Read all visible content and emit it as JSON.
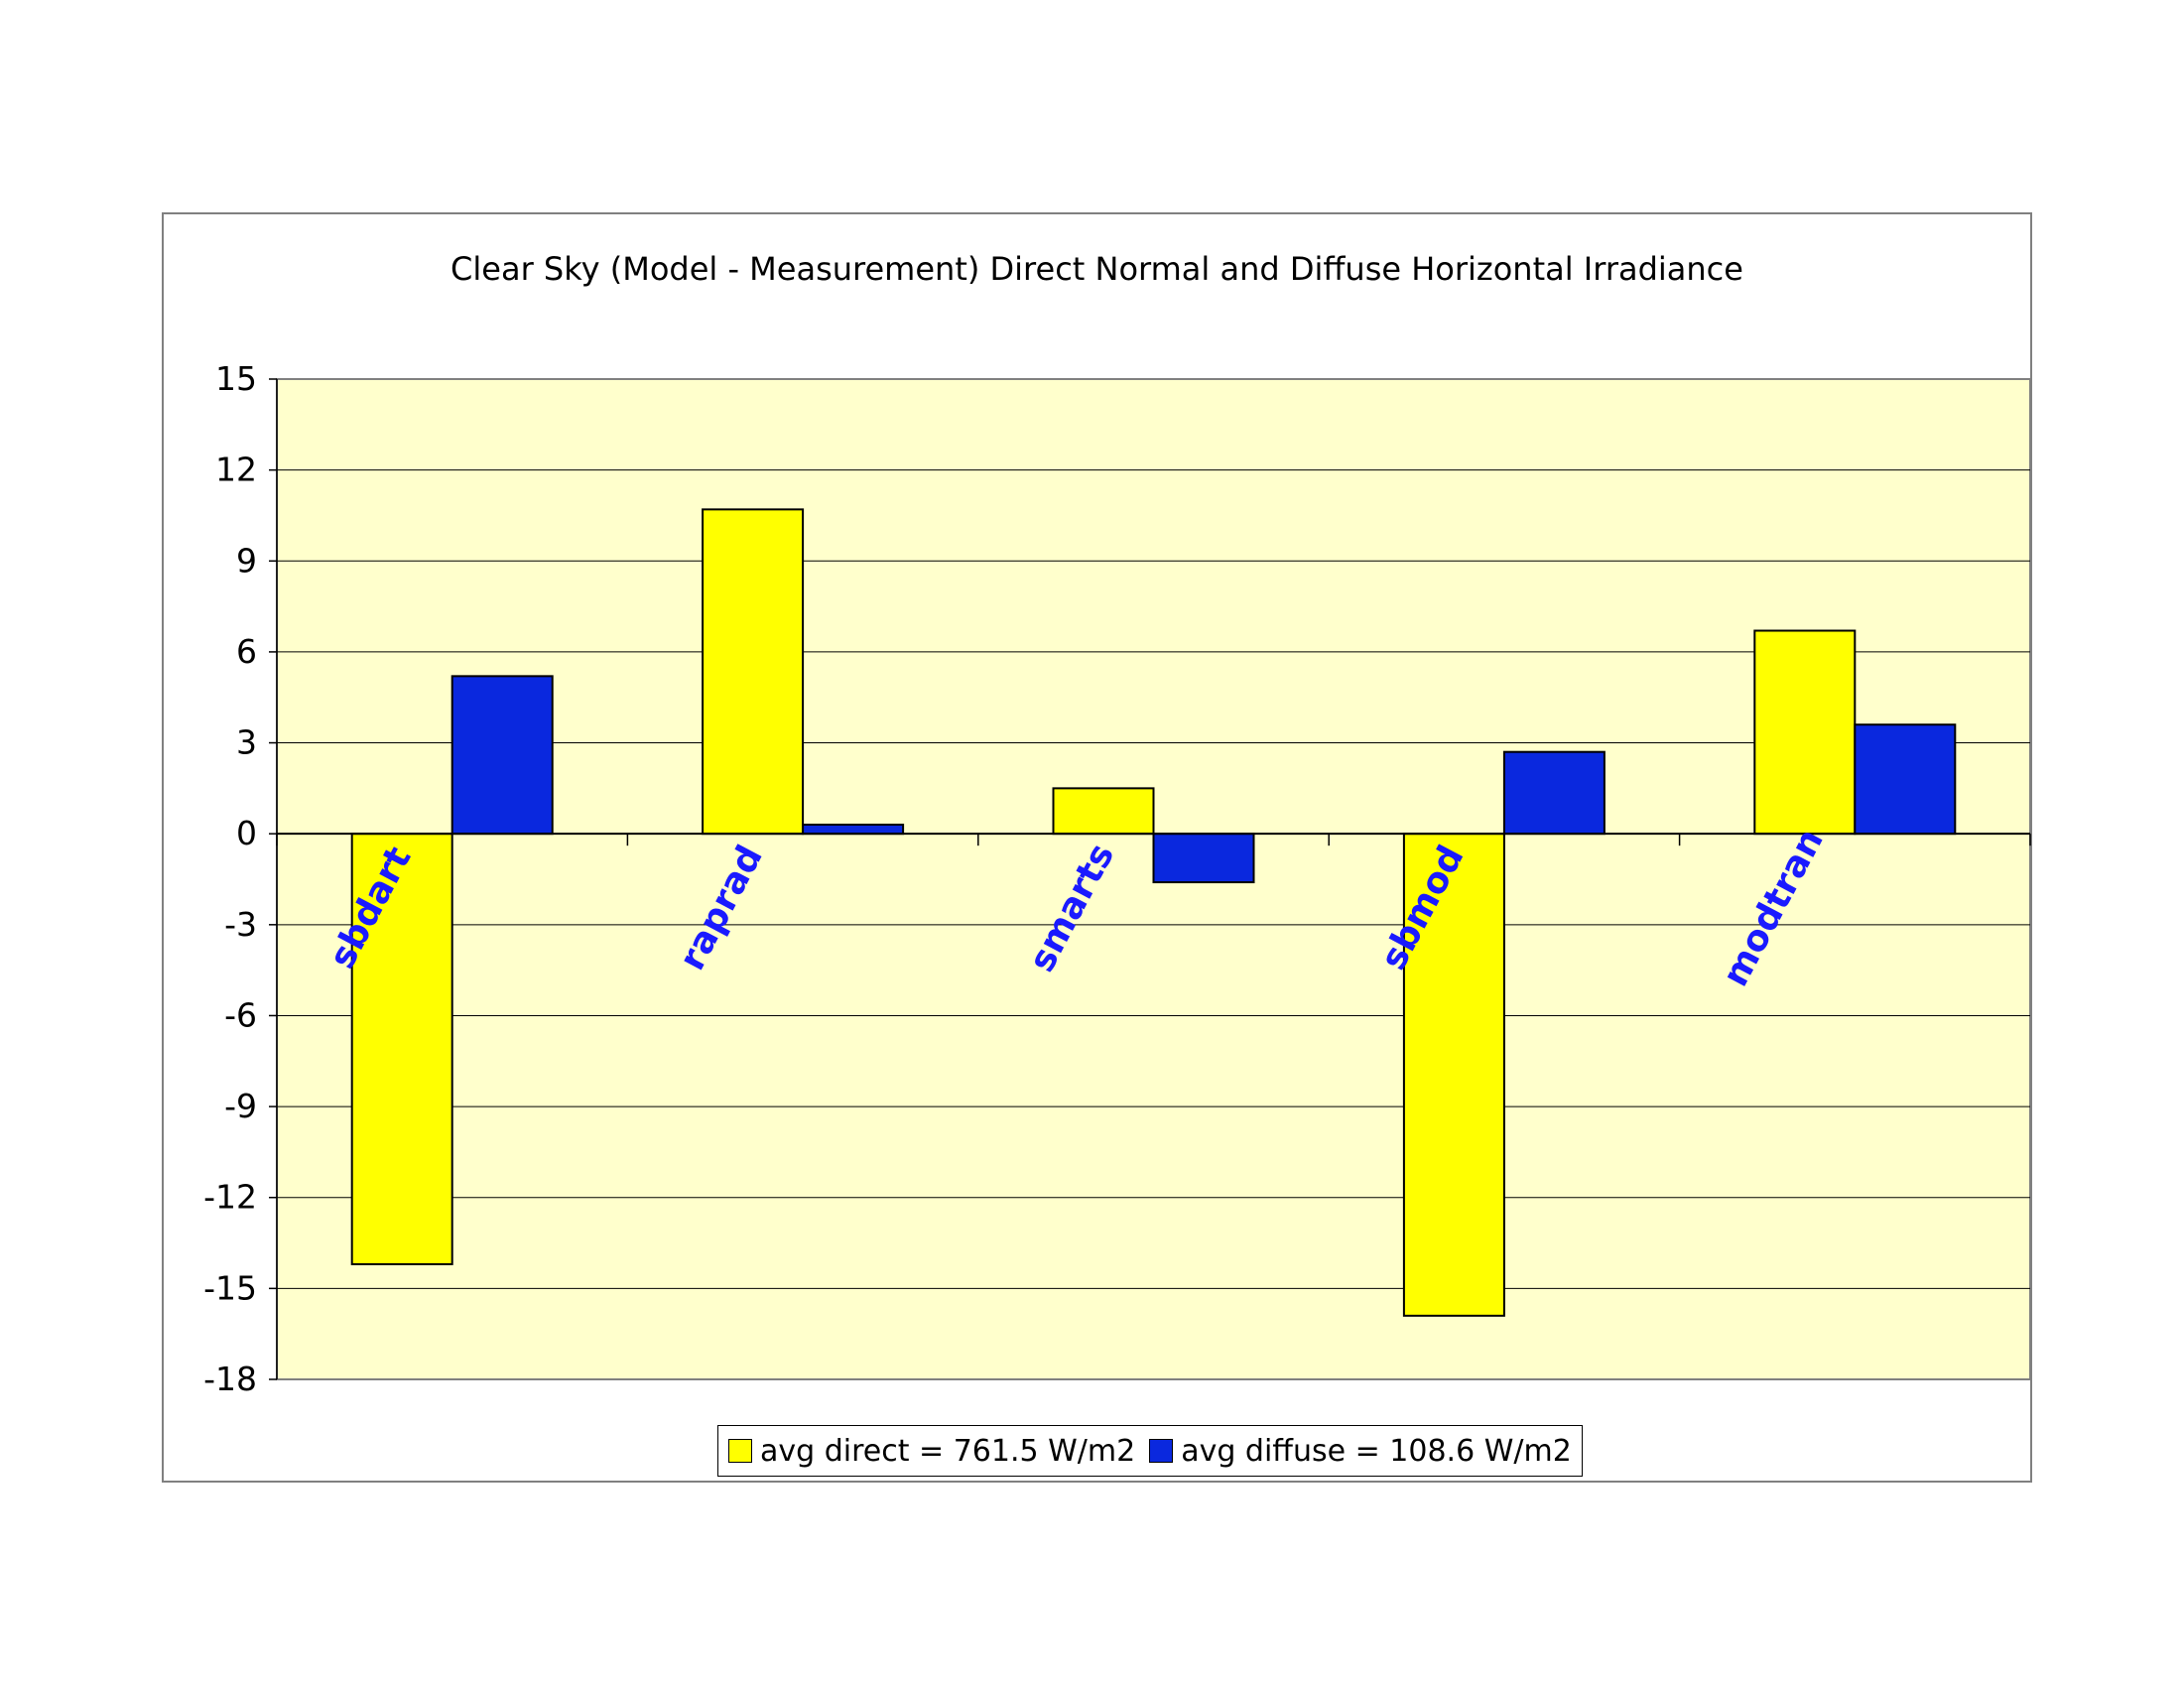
{
  "chart_data": {
    "type": "bar",
    "title": "Clear Sky (Model - Measurement) Direct Normal and Diffuse Horizontal Irradiance",
    "xlabel": "",
    "ylabel": "",
    "categories": [
      "sbdart",
      "raprad",
      "smarts",
      "sbmod",
      "modtran"
    ],
    "series": [
      {
        "name": "avg direct = 761.5 W/m2",
        "values": [
          -14.2,
          10.7,
          1.5,
          -15.9,
          6.7
        ],
        "color": "#ffff00"
      },
      {
        "name": "avg diffuse = 108.6 W/m2",
        "values": [
          5.2,
          0.3,
          -1.6,
          2.7,
          3.6
        ],
        "color": "#0a28de"
      }
    ],
    "ylim": [
      -18,
      15
    ],
    "yticks": [
      15,
      12,
      9,
      6,
      3,
      0,
      -3,
      -6,
      -9,
      -12,
      -15,
      -18
    ],
    "grid": true,
    "legend_position": "bottom",
    "plot_background": "#ffffcc",
    "category_label_color": "#1a1aff"
  }
}
